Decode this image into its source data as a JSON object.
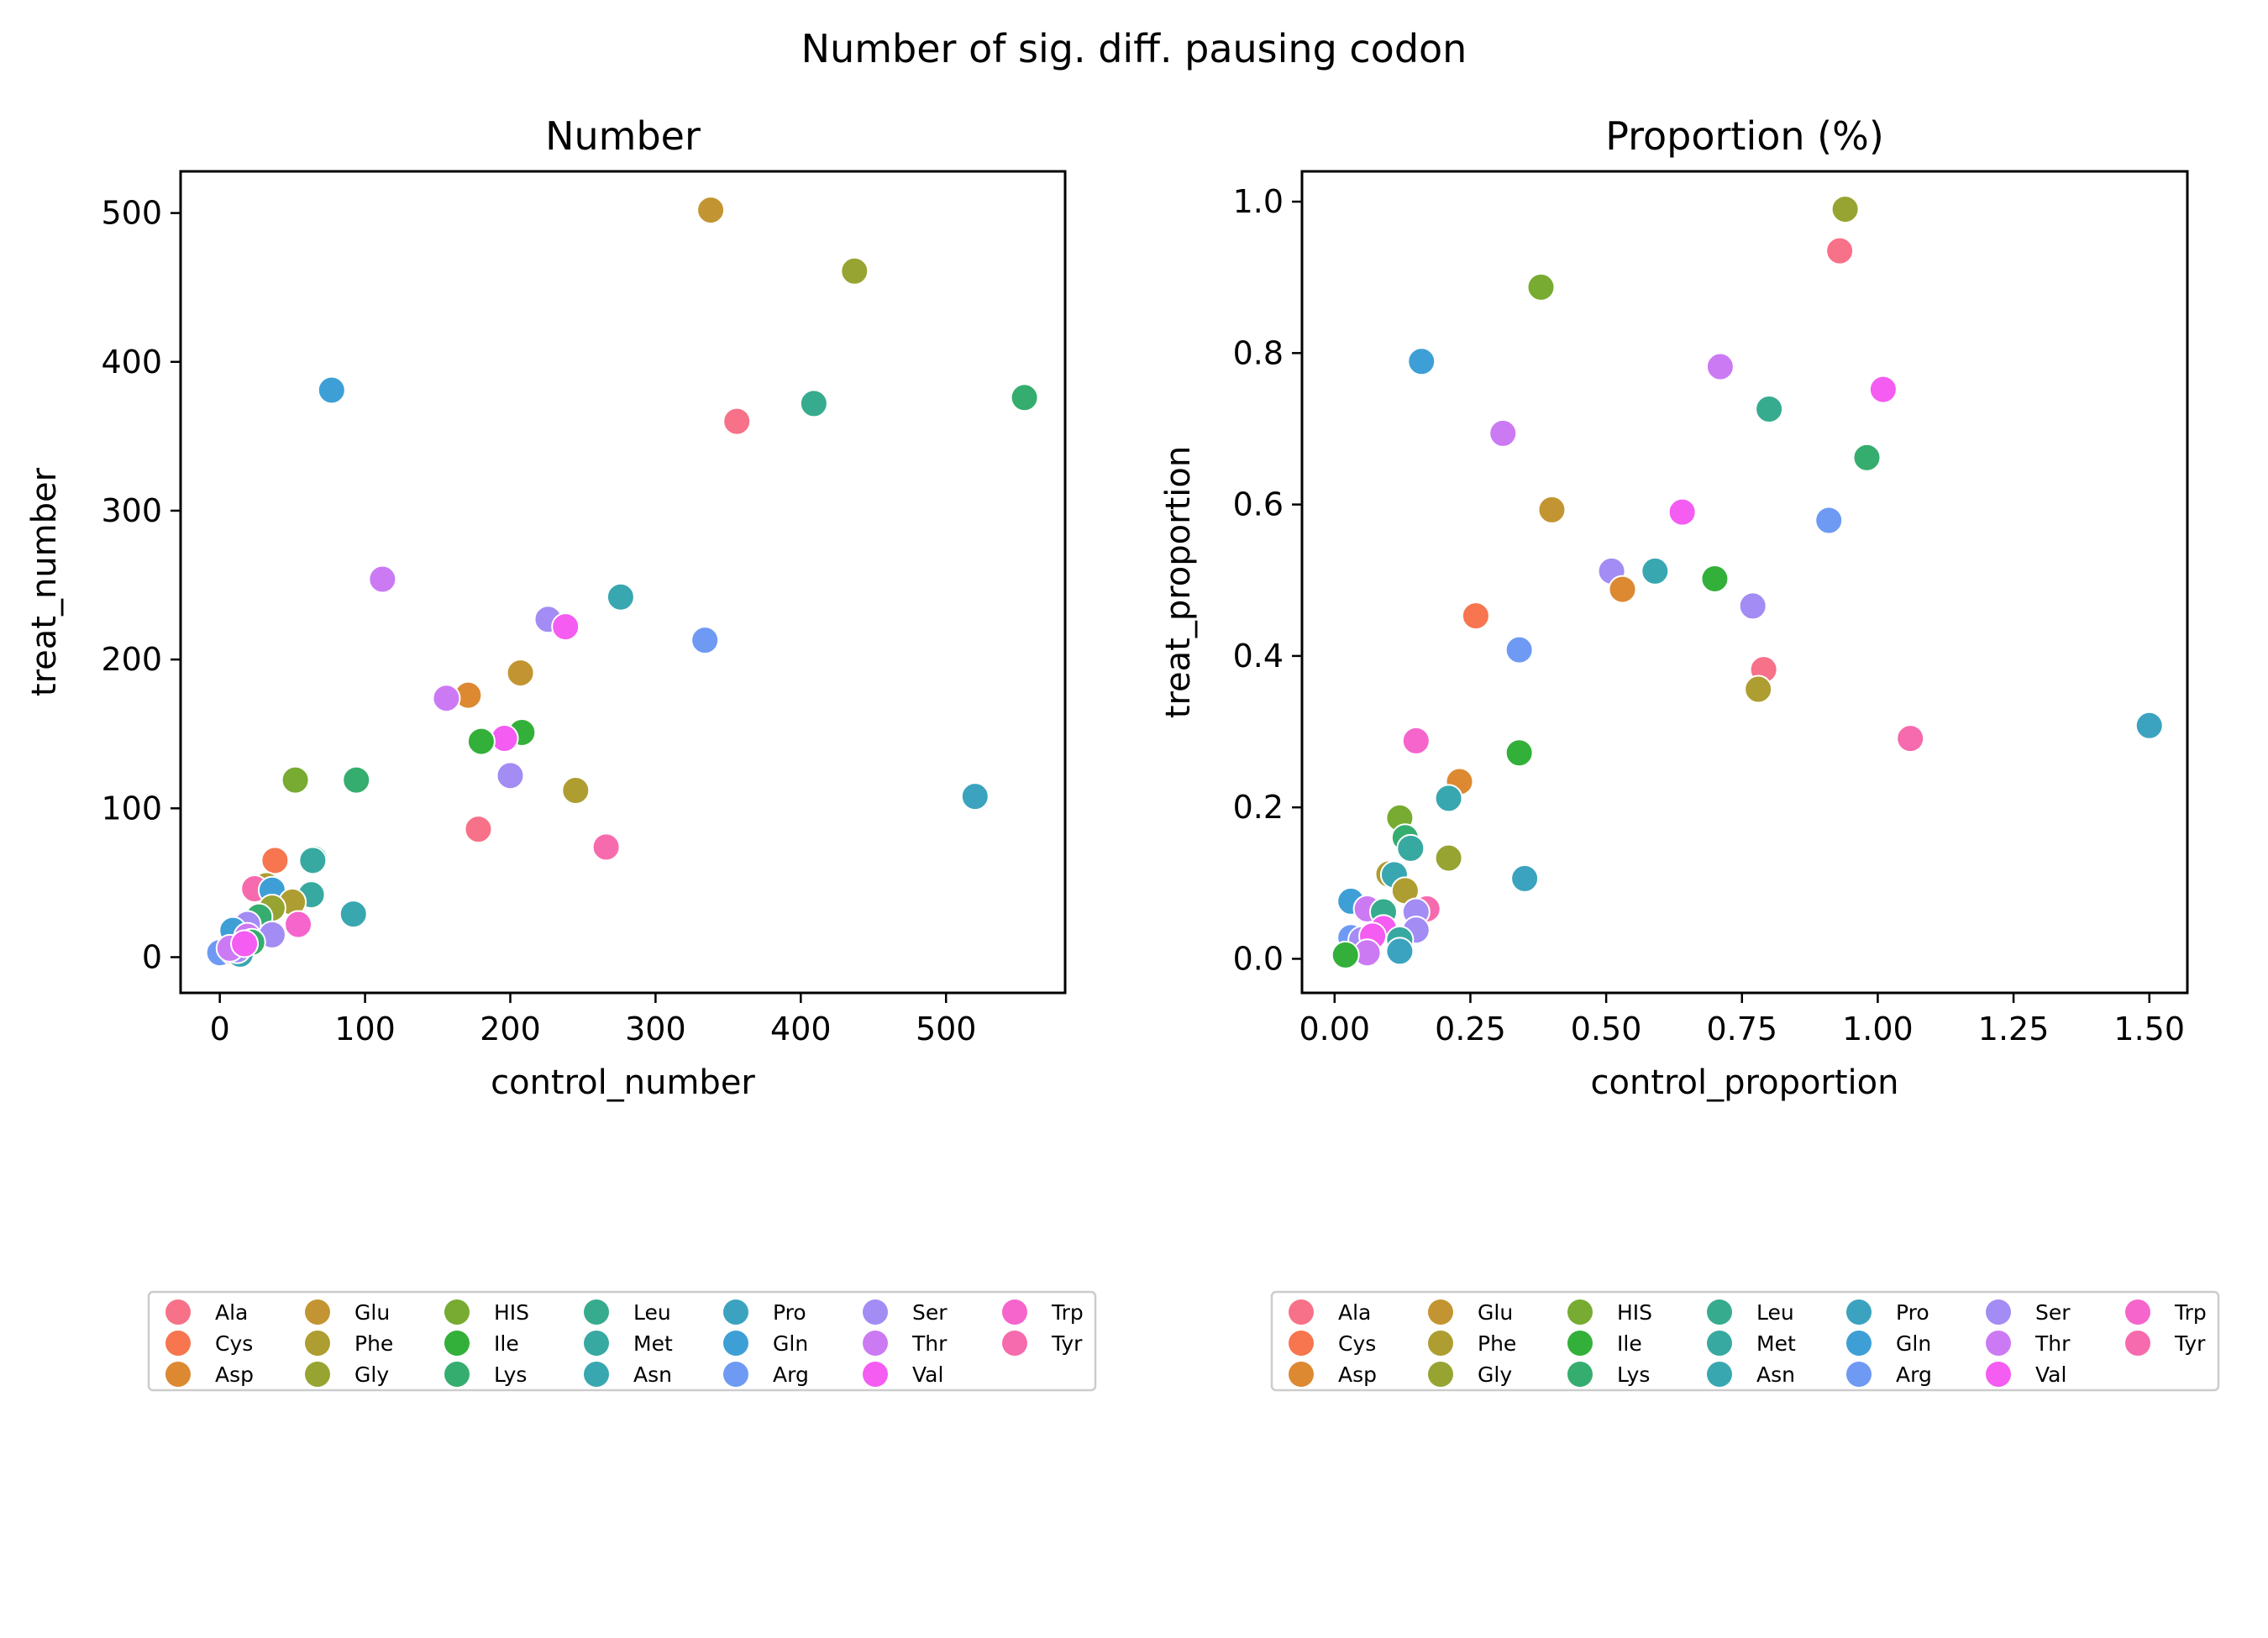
{
  "suptitle": "Number of sig. diff. pausing codon",
  "colors": {
    "Ala": "#f77189",
    "Cys": "#f7754f",
    "Asp": "#dc8932",
    "Glu": "#c39532",
    "Phe": "#ae9d31",
    "Gly": "#97a431",
    "HIS": "#77ab31",
    "Ile": "#33b039",
    "Lys": "#35ad6e",
    "Leu": "#37ab8e",
    "Met": "#38a9a0",
    "Asn": "#39a7b0",
    "Pro": "#3ba3bf",
    "Gln": "#3e9fd6",
    "Arg": "#6e9af4",
    "Ser": "#a38cf4",
    "Thr": "#cc7af4",
    "Val": "#f45cf2",
    "Trp": "#f565cc",
    "Tyr": "#f66bad"
  },
  "legend": {
    "placement": "below",
    "columns": [
      [
        "Ala",
        "Cys",
        "Asp"
      ],
      [
        "Glu",
        "Phe",
        "Gly"
      ],
      [
        "HIS",
        "Ile",
        "Lys"
      ],
      [
        "Leu",
        "Met",
        "Asn"
      ],
      [
        "Pro",
        "Gln",
        "Arg"
      ],
      [
        "Ser",
        "Thr",
        "Val"
      ],
      [
        "Trp",
        "Tyr"
      ]
    ]
  },
  "chart_data": [
    {
      "type": "scatter",
      "title": "Number",
      "xlabel": "control_number",
      "ylabel": "treat_number",
      "xlim": [
        -27,
        582
      ],
      "ylim": [
        -24,
        528
      ],
      "xticks": [
        0,
        100,
        200,
        300,
        400,
        500
      ],
      "yticks": [
        0,
        100,
        200,
        300,
        400,
        500
      ],
      "points": [
        {
          "g": "Glu",
          "x": 338,
          "y": 502
        },
        {
          "g": "Gly",
          "x": 437,
          "y": 461
        },
        {
          "g": "Gln",
          "x": 77,
          "y": 381
        },
        {
          "g": "Lys",
          "x": 554,
          "y": 376
        },
        {
          "g": "Leu",
          "x": 409,
          "y": 372
        },
        {
          "g": "Ala",
          "x": 356,
          "y": 360
        },
        {
          "g": "Thr",
          "x": 112,
          "y": 254
        },
        {
          "g": "Asn",
          "x": 276,
          "y": 242
        },
        {
          "g": "Ser",
          "x": 226,
          "y": 227
        },
        {
          "g": "Val",
          "x": 238,
          "y": 222
        },
        {
          "g": "Arg",
          "x": 334,
          "y": 213
        },
        {
          "g": "Glu",
          "x": 207,
          "y": 191
        },
        {
          "g": "Asp",
          "x": 171,
          "y": 176
        },
        {
          "g": "Thr",
          "x": 156,
          "y": 174
        },
        {
          "g": "Ile",
          "x": 208,
          "y": 151
        },
        {
          "g": "Val",
          "x": 196,
          "y": 147
        },
        {
          "g": "Ile",
          "x": 180,
          "y": 145
        },
        {
          "g": "Ser",
          "x": 200,
          "y": 122
        },
        {
          "g": "Lys",
          "x": 94,
          "y": 119
        },
        {
          "g": "HIS",
          "x": 52,
          "y": 119
        },
        {
          "g": "Phe",
          "x": 245,
          "y": 112
        },
        {
          "g": "Pro",
          "x": 520,
          "y": 108
        },
        {
          "g": "Ala",
          "x": 178,
          "y": 86
        },
        {
          "g": "Tyr",
          "x": 266,
          "y": 74
        },
        {
          "g": "Leu",
          "x": 65,
          "y": 66
        },
        {
          "g": "Cys",
          "x": 38,
          "y": 65
        },
        {
          "g": "Met",
          "x": 64,
          "y": 65
        },
        {
          "g": "Phe",
          "x": 32,
          "y": 48
        },
        {
          "g": "Tyr",
          "x": 24,
          "y": 46
        },
        {
          "g": "Gln",
          "x": 36,
          "y": 45
        },
        {
          "g": "Met",
          "x": 63,
          "y": 42
        },
        {
          "g": "Phe",
          "x": 50,
          "y": 37
        },
        {
          "g": "Gly",
          "x": 36,
          "y": 33
        },
        {
          "g": "Asn",
          "x": 92,
          "y": 29
        },
        {
          "g": "Lys",
          "x": 27,
          "y": 27
        },
        {
          "g": "Trp",
          "x": 54,
          "y": 22
        },
        {
          "g": "Ser",
          "x": 19,
          "y": 22
        },
        {
          "g": "Gln",
          "x": 9,
          "y": 18
        },
        {
          "g": "Ser",
          "x": 36,
          "y": 15
        },
        {
          "g": "Thr",
          "x": 19,
          "y": 14
        },
        {
          "g": "Lys",
          "x": 22,
          "y": 10
        },
        {
          "g": "Met",
          "x": 14,
          "y": 7
        },
        {
          "g": "Arg",
          "x": 0,
          "y": 3
        },
        {
          "g": "Ala",
          "x": 9,
          "y": 4
        },
        {
          "g": "Asn",
          "x": 14,
          "y": 2
        },
        {
          "g": "Ser",
          "x": 12,
          "y": 5
        },
        {
          "g": "Thr",
          "x": 7,
          "y": 6
        },
        {
          "g": "Val",
          "x": 17,
          "y": 9
        }
      ]
    },
    {
      "type": "scatter",
      "title": "Proportion (%)",
      "xlabel": "control_proportion",
      "ylabel": "treat_proportion",
      "xlim": [
        -0.06,
        1.57
      ],
      "ylim": [
        -0.045,
        1.04
      ],
      "xticks": [
        "0.00",
        "0.25",
        "0.50",
        "0.75",
        "1.00",
        "1.25",
        "1.50"
      ],
      "yticks": [
        "0.0",
        "0.2",
        "0.4",
        "0.6",
        "0.8",
        "1.0"
      ],
      "points": [
        {
          "g": "Gly",
          "x": 0.94,
          "y": 0.99
        },
        {
          "g": "Ala",
          "x": 0.93,
          "y": 0.935
        },
        {
          "g": "HIS",
          "x": 0.38,
          "y": 0.887
        },
        {
          "g": "Gln",
          "x": 0.16,
          "y": 0.789
        },
        {
          "g": "Thr",
          "x": 0.71,
          "y": 0.782
        },
        {
          "g": "Val",
          "x": 1.01,
          "y": 0.752
        },
        {
          "g": "Leu",
          "x": 0.8,
          "y": 0.726
        },
        {
          "g": "Thr",
          "x": 0.31,
          "y": 0.694
        },
        {
          "g": "Lys",
          "x": 0.98,
          "y": 0.662
        },
        {
          "g": "Glu",
          "x": 0.4,
          "y": 0.593
        },
        {
          "g": "Val",
          "x": 0.64,
          "y": 0.59
        },
        {
          "g": "Arg",
          "x": 0.91,
          "y": 0.579
        },
        {
          "g": "Ser",
          "x": 0.51,
          "y": 0.512
        },
        {
          "g": "Asn",
          "x": 0.59,
          "y": 0.512
        },
        {
          "g": "Ile",
          "x": 0.7,
          "y": 0.502
        },
        {
          "g": "Asp",
          "x": 0.53,
          "y": 0.488
        },
        {
          "g": "Ser",
          "x": 0.77,
          "y": 0.466
        },
        {
          "g": "Cys",
          "x": 0.26,
          "y": 0.453
        },
        {
          "g": "Arg",
          "x": 0.34,
          "y": 0.408
        },
        {
          "g": "Ala",
          "x": 0.79,
          "y": 0.382
        },
        {
          "g": "Phe",
          "x": 0.78,
          "y": 0.356
        },
        {
          "g": "Pro",
          "x": 1.5,
          "y": 0.308
        },
        {
          "g": "Tyr",
          "x": 1.06,
          "y": 0.291
        },
        {
          "g": "Trp",
          "x": 0.15,
          "y": 0.288
        },
        {
          "g": "Ile",
          "x": 0.34,
          "y": 0.272
        },
        {
          "g": "Asp",
          "x": 0.23,
          "y": 0.234
        },
        {
          "g": "Asn",
          "x": 0.21,
          "y": 0.212
        },
        {
          "g": "HIS",
          "x": 0.12,
          "y": 0.186
        },
        {
          "g": "Lys",
          "x": 0.13,
          "y": 0.16
        },
        {
          "g": "Met",
          "x": 0.14,
          "y": 0.146
        },
        {
          "g": "Gly",
          "x": 0.21,
          "y": 0.133
        },
        {
          "g": "Phe",
          "x": 0.1,
          "y": 0.112
        },
        {
          "g": "Asn",
          "x": 0.11,
          "y": 0.111
        },
        {
          "g": "Pro",
          "x": 0.35,
          "y": 0.106
        },
        {
          "g": "Phe",
          "x": 0.13,
          "y": 0.09
        },
        {
          "g": "Gln",
          "x": 0.03,
          "y": 0.076
        },
        {
          "g": "Tyr",
          "x": 0.17,
          "y": 0.066
        },
        {
          "g": "Thr",
          "x": 0.06,
          "y": 0.066
        },
        {
          "g": "Ser",
          "x": 0.15,
          "y": 0.062
        },
        {
          "g": "Leu",
          "x": 0.09,
          "y": 0.062
        },
        {
          "g": "Ser",
          "x": 0.15,
          "y": 0.038
        },
        {
          "g": "Val",
          "x": 0.09,
          "y": 0.04
        },
        {
          "g": "Arg",
          "x": 0.03,
          "y": 0.028
        },
        {
          "g": "Ser",
          "x": 0.05,
          "y": 0.025
        },
        {
          "g": "Val",
          "x": 0.07,
          "y": 0.03
        },
        {
          "g": "Met",
          "x": 0.12,
          "y": 0.025
        },
        {
          "g": "Pro",
          "x": 0.12,
          "y": 0.01
        },
        {
          "g": "Thr",
          "x": 0.06,
          "y": 0.008
        },
        {
          "g": "Ile",
          "x": 0.02,
          "y": 0.005
        }
      ]
    }
  ]
}
